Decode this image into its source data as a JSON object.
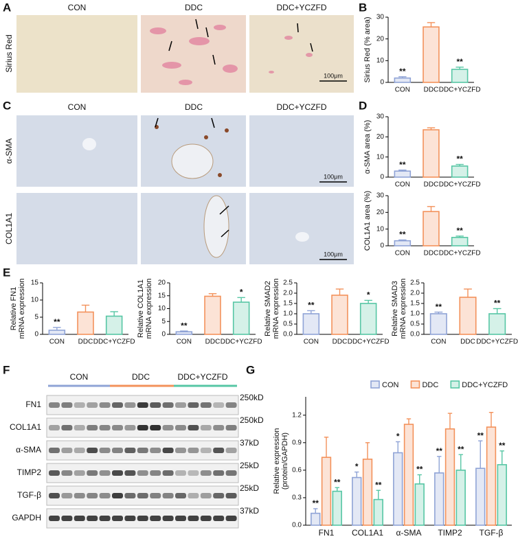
{
  "panel_labels": [
    "A",
    "B",
    "C",
    "D",
    "E",
    "F",
    "G"
  ],
  "panel_a": {
    "columns": [
      "CON",
      "DDC",
      "DDC+YCZFD"
    ],
    "row_label": "Sirius Red",
    "scale_bar": "100μm"
  },
  "panel_c": {
    "columns": [
      "CON",
      "DDC",
      "DDC+YCZFD"
    ],
    "rows": [
      "α-SMA",
      "COL1A1"
    ],
    "scale_bar": "100μm"
  },
  "panel_f": {
    "groups": [
      "CON",
      "DDC",
      "DDC+YCZFD"
    ],
    "rows": [
      {
        "protein": "FN1",
        "size": "250kD"
      },
      {
        "protein": "COL1A1",
        "size": "250kD"
      },
      {
        "protein": "α-SMA",
        "size": "37kD"
      },
      {
        "protein": "TIMP2",
        "size": "25kD"
      },
      {
        "protein": "TGF-β",
        "size": "25kD"
      },
      {
        "protein": "GAPDH",
        "size": "37kD"
      }
    ]
  },
  "chart_data": [
    {
      "type": "bar",
      "ylabel": "Sirius Red  (% area)",
      "categories": [
        "CON",
        "DDC",
        "DDC+YCZFD"
      ],
      "values": [
        2,
        25.5,
        6
      ],
      "errors": [
        0.6,
        2,
        1
      ],
      "annotations": [
        "**",
        null,
        "**"
      ],
      "colors": [
        "#8fa3d6",
        "#f3915a",
        "#56c6a4"
      ],
      "ylim": [
        0,
        30
      ],
      "yticks": [
        0,
        10,
        20,
        30
      ]
    },
    {
      "type": "bar",
      "ylabel": "α-SMA area (%)",
      "categories": [
        "CON",
        "DDC",
        "DDC+YCZFD"
      ],
      "values": [
        3,
        23.5,
        5.5
      ],
      "errors": [
        0.5,
        1,
        0.8
      ],
      "annotations": [
        "**",
        null,
        "**"
      ],
      "colors": [
        "#8fa3d6",
        "#f3915a",
        "#56c6a4"
      ],
      "ylim": [
        0,
        30
      ],
      "yticks": [
        0,
        10,
        20,
        30
      ]
    },
    {
      "type": "bar",
      "ylabel": "COL1A1 area (%)",
      "categories": [
        "CON",
        "DDC",
        "DDC+YCZFD"
      ],
      "values": [
        3,
        20.5,
        5
      ],
      "errors": [
        0.5,
        3,
        0.8
      ],
      "annotations": [
        "**",
        null,
        "**"
      ],
      "colors": [
        "#8fa3d6",
        "#f3915a",
        "#56c6a4"
      ],
      "ylim": [
        0,
        30
      ],
      "yticks": [
        0,
        10,
        20,
        30
      ]
    },
    {
      "type": "bar",
      "ylabel": [
        "Relative FN1",
        "mRNA expression"
      ],
      "categories": [
        "CON",
        "DDC",
        "DDC+YCZFD"
      ],
      "values": [
        1.2,
        6.5,
        5.3
      ],
      "errors": [
        0.8,
        2,
        1.3
      ],
      "annotations": [
        "**",
        null,
        null
      ],
      "colors": [
        "#8fa3d6",
        "#f3915a",
        "#56c6a4"
      ],
      "ylim": [
        0,
        15
      ],
      "yticks": [
        0,
        5,
        10,
        15
      ]
    },
    {
      "type": "bar",
      "ylabel": [
        "Relative COL1A1",
        "mRNA expression"
      ],
      "categories": [
        "CON",
        "DDC",
        "DDC+YCZFD"
      ],
      "values": [
        1,
        14.8,
        12.5
      ],
      "errors": [
        0.3,
        1,
        1.8
      ],
      "annotations": [
        "**",
        null,
        "*"
      ],
      "colors": [
        "#8fa3d6",
        "#f3915a",
        "#56c6a4"
      ],
      "ylim": [
        0,
        20
      ],
      "yticks": [
        0,
        5,
        10,
        15,
        20
      ]
    },
    {
      "type": "bar",
      "ylabel": [
        "Relative SMAD2",
        "mRNA expression"
      ],
      "categories": [
        "CON",
        "DDC",
        "DDC+YCZFD"
      ],
      "values": [
        1.0,
        1.9,
        1.5
      ],
      "errors": [
        0.15,
        0.3,
        0.15
      ],
      "annotations": [
        "**",
        null,
        "*"
      ],
      "colors": [
        "#8fa3d6",
        "#f3915a",
        "#56c6a4"
      ],
      "ylim": [
        0,
        2.5
      ],
      "yticks": [
        {
          "value": 0,
          "label": "0.0"
        },
        {
          "value": 0.5,
          "label": "0.5"
        },
        {
          "value": 1,
          "label": "1.0"
        },
        {
          "value": 1.5,
          "label": "1.5"
        },
        {
          "value": 2,
          "label": "2.0"
        },
        {
          "value": 2.5,
          "label": "2.5"
        }
      ]
    },
    {
      "type": "bar",
      "ylabel": [
        "Relative SMAD3",
        "mRNA expression"
      ],
      "categories": [
        "CON",
        "DDC",
        "DDC+YCZFD"
      ],
      "values": [
        1.0,
        1.8,
        1.0
      ],
      "errors": [
        0.08,
        0.4,
        0.25
      ],
      "annotations": [
        "**",
        null,
        "**"
      ],
      "colors": [
        "#8fa3d6",
        "#f3915a",
        "#56c6a4"
      ],
      "ylim": [
        0,
        2.5
      ],
      "yticks": [
        {
          "value": 0,
          "label": "0.0"
        },
        {
          "value": 0.5,
          "label": "0.5"
        },
        {
          "value": 1,
          "label": "1.0"
        },
        {
          "value": 1.5,
          "label": "1.5"
        },
        {
          "value": 2,
          "label": "2.0"
        },
        {
          "value": 2.5,
          "label": "2.5"
        }
      ]
    },
    {
      "type": "grouped_bar",
      "ylabel": [
        "Relative  expression",
        "(protein/GAPDH)"
      ],
      "categories": [
        "FN1",
        "COL1A1",
        "α-SMA",
        "TIMP2",
        "TGF-β"
      ],
      "legend": "top",
      "series": [
        {
          "name": "CON",
          "color": "#8fa3d6",
          "values": [
            0.13,
            0.52,
            0.79,
            0.57,
            0.62
          ],
          "errors": [
            0.05,
            0.06,
            0.12,
            0.18,
            0.3
          ],
          "annotations": [
            "**",
            "*",
            "*",
            "**",
            "**"
          ]
        },
        {
          "name": "DDC",
          "color": "#f3915a",
          "values": [
            0.74,
            0.72,
            1.1,
            1.05,
            1.07
          ],
          "errors": [
            0.22,
            0.18,
            0.06,
            0.17,
            0.16
          ],
          "annotations": [
            null,
            null,
            null,
            null,
            null
          ]
        },
        {
          "name": "DDC+YCZFD",
          "color": "#56c6a4",
          "values": [
            0.37,
            0.28,
            0.45,
            0.6,
            0.66
          ],
          "errors": [
            0.04,
            0.1,
            0.1,
            0.17,
            0.15
          ],
          "annotations": [
            "**",
            "**",
            "**",
            "**",
            "**"
          ]
        }
      ],
      "ylim": [
        0,
        1.4
      ],
      "yticks": [
        {
          "value": 0,
          "label": "0.0"
        },
        {
          "value": 0.3,
          "label": "0.3"
        },
        {
          "value": 0.6,
          "label": "0.6"
        },
        {
          "value": 0.9,
          "label": "0.9"
        },
        {
          "value": 1.2,
          "label": "1.2"
        }
      ]
    }
  ]
}
